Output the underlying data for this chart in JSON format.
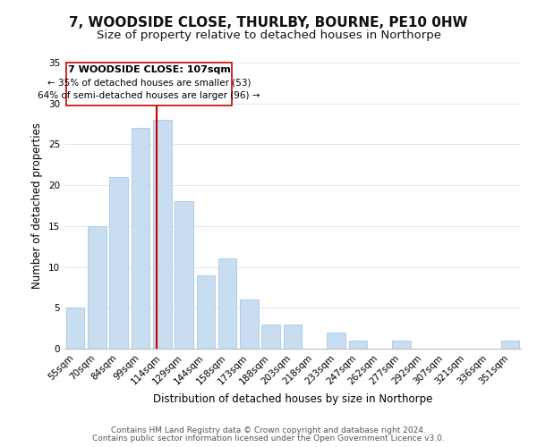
{
  "title": "7, WOODSIDE CLOSE, THURLBY, BOURNE, PE10 0HW",
  "subtitle": "Size of property relative to detached houses in Northorpe",
  "xlabel": "Distribution of detached houses by size in Northorpe",
  "ylabel": "Number of detached properties",
  "bar_color": "#c8ddf0",
  "bar_edge_color": "#a8c8e8",
  "categories": [
    "55sqm",
    "70sqm",
    "84sqm",
    "99sqm",
    "114sqm",
    "129sqm",
    "144sqm",
    "158sqm",
    "173sqm",
    "188sqm",
    "203sqm",
    "218sqm",
    "233sqm",
    "247sqm",
    "262sqm",
    "277sqm",
    "292sqm",
    "307sqm",
    "321sqm",
    "336sqm",
    "351sqm"
  ],
  "values": [
    5,
    15,
    21,
    27,
    28,
    18,
    9,
    11,
    6,
    3,
    3,
    0,
    2,
    1,
    0,
    1,
    0,
    0,
    0,
    0,
    1
  ],
  "ylim": [
    0,
    35
  ],
  "yticks": [
    0,
    5,
    10,
    15,
    20,
    25,
    30,
    35
  ],
  "vline_x_index": 3.73,
  "vline_color": "#cc0000",
  "annotation_title": "7 WOODSIDE CLOSE: 107sqm",
  "annotation_line1": "← 35% of detached houses are smaller (53)",
  "annotation_line2": "64% of semi-detached houses are larger (96) →",
  "box_facecolor": "#ffffff",
  "box_edgecolor": "#cc0000",
  "footer1": "Contains HM Land Registry data © Crown copyright and database right 2024.",
  "footer2": "Contains public sector information licensed under the Open Government Licence v3.0.",
  "background_color": "#ffffff",
  "grid_color": "#dde8f0",
  "title_fontsize": 11,
  "subtitle_fontsize": 9.5,
  "axis_label_fontsize": 8.5,
  "tick_fontsize": 7.5,
  "annot_title_fontsize": 8,
  "annot_text_fontsize": 7.5,
  "footer_fontsize": 6.5
}
